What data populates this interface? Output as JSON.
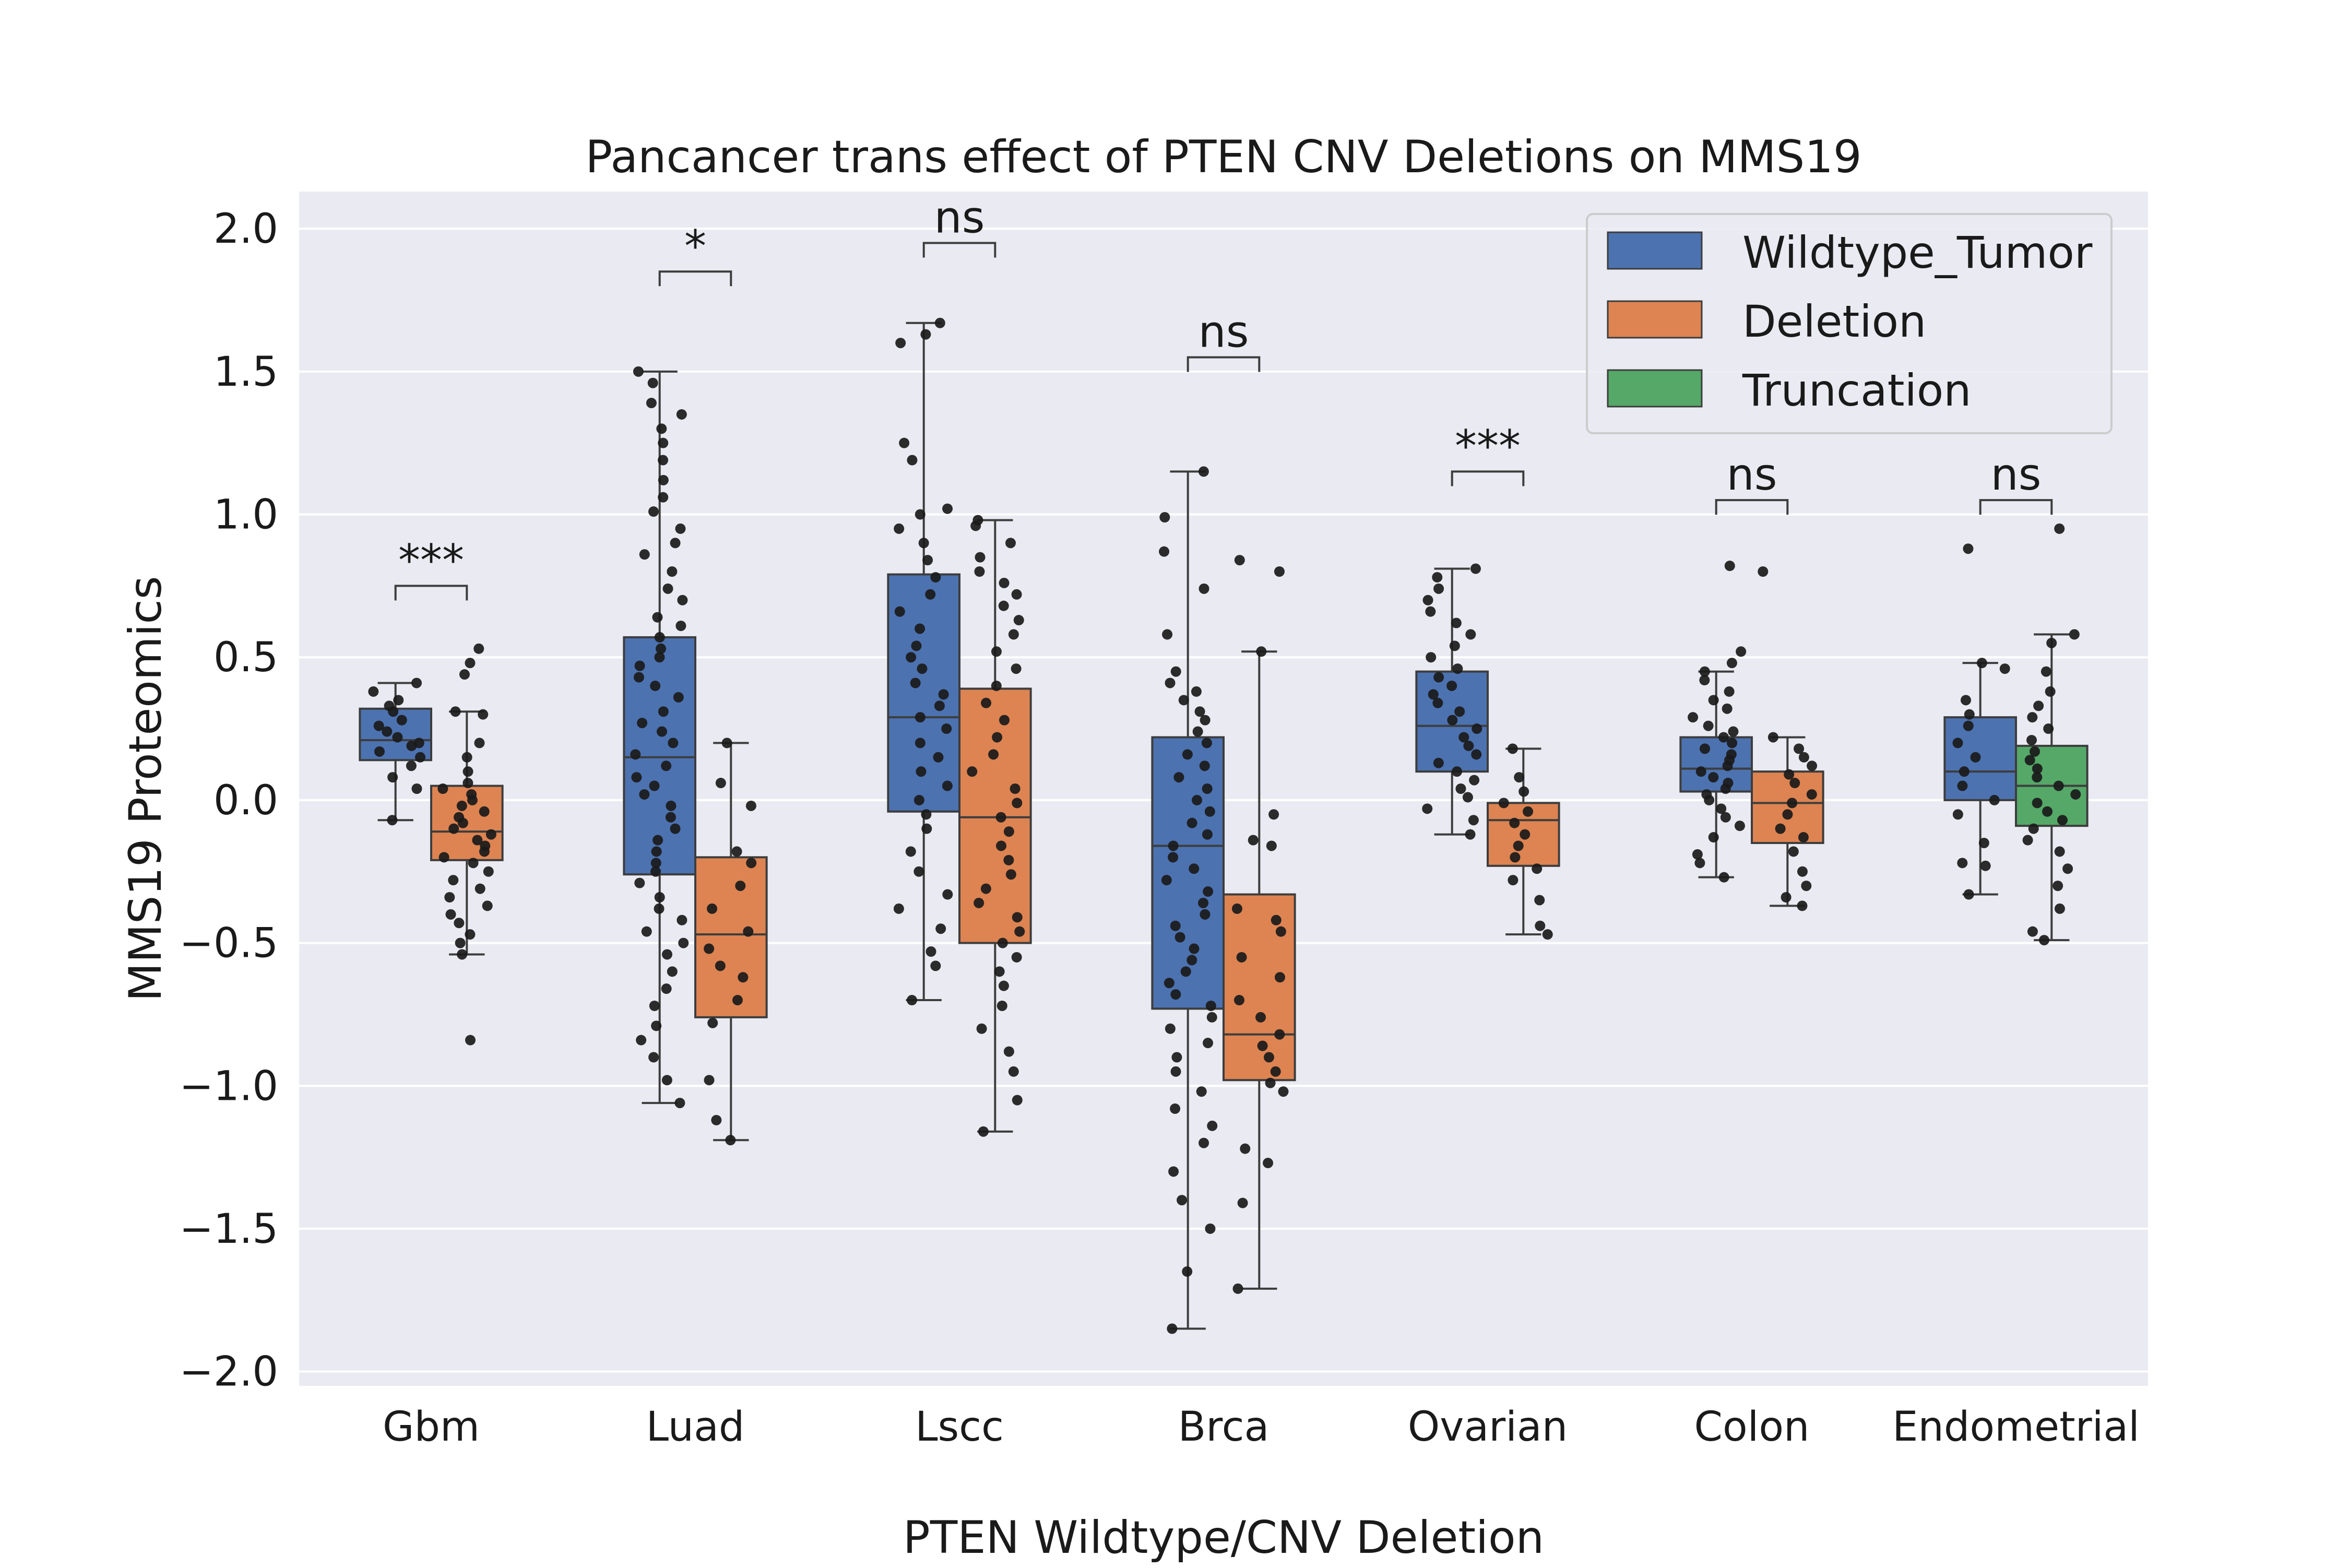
{
  "chart_data": {
    "type": "box",
    "title": "Pancancer trans effect of PTEN CNV Deletions on MMS19",
    "xlabel": "PTEN Wildtype/CNV Deletion",
    "ylabel": "MMS19 Proteomics",
    "ylim": [
      -2.05,
      2.13
    ],
    "yticks": [
      2.0,
      1.5,
      1.0,
      0.5,
      0.0,
      -0.5,
      -1.0,
      -1.5,
      -2.0
    ],
    "ytick_labels": [
      "2.0",
      "1.5",
      "1.0",
      "0.5",
      "0.0",
      "−0.5",
      "−1.0",
      "−1.5",
      "−2.0"
    ],
    "grid": true,
    "background": "#eaeaf2",
    "legend_position": "top-right",
    "categories": [
      "Gbm",
      "Luad",
      "Lscc",
      "Brca",
      "Ovarian",
      "Colon",
      "Endometrial"
    ],
    "legend": [
      {
        "label": "Wildtype_Tumor",
        "color": "#4c72b0"
      },
      {
        "label": "Deletion",
        "color": "#dd8452"
      },
      {
        "label": "Truncation",
        "color": "#55a868"
      }
    ],
    "boxes": [
      {
        "category": "Gbm",
        "group": "Wildtype_Tumor",
        "color": "#4c72b0",
        "whisker_low": -0.07,
        "q1": 0.14,
        "median": 0.21,
        "q3": 0.32,
        "whisker_high": 0.41,
        "points": [
          0.41,
          0.38,
          0.35,
          0.33,
          0.31,
          0.28,
          0.26,
          0.24,
          0.22,
          0.2,
          0.19,
          0.17,
          0.15,
          0.12,
          0.08,
          0.04,
          -0.07
        ]
      },
      {
        "category": "Gbm",
        "group": "Deletion",
        "color": "#dd8452",
        "whisker_low": -0.54,
        "q1": -0.21,
        "median": -0.11,
        "q3": 0.05,
        "whisker_high": 0.31,
        "points": [
          0.53,
          0.48,
          0.44,
          0.31,
          0.3,
          0.2,
          0.15,
          0.1,
          0.06,
          0.04,
          0.02,
          0.0,
          -0.02,
          -0.04,
          -0.06,
          -0.08,
          -0.1,
          -0.12,
          -0.14,
          -0.16,
          -0.18,
          -0.2,
          -0.22,
          -0.25,
          -0.28,
          -0.31,
          -0.34,
          -0.37,
          -0.4,
          -0.43,
          -0.47,
          -0.5,
          -0.54,
          -0.84
        ]
      },
      {
        "category": "Luad",
        "group": "Wildtype_Tumor",
        "color": "#4c72b0",
        "whisker_low": -1.06,
        "q1": -0.26,
        "median": 0.15,
        "q3": 0.57,
        "whisker_high": 1.5,
        "points": [
          1.5,
          1.46,
          1.39,
          1.35,
          1.3,
          1.25,
          1.19,
          1.12,
          1.06,
          1.01,
          0.95,
          0.9,
          0.86,
          0.8,
          0.74,
          0.7,
          0.64,
          0.61,
          0.57,
          0.53,
          0.5,
          0.47,
          0.43,
          0.4,
          0.36,
          0.31,
          0.27,
          0.24,
          0.2,
          0.16,
          0.12,
          0.08,
          0.05,
          0.02,
          -0.02,
          -0.06,
          -0.1,
          -0.14,
          -0.18,
          -0.22,
          -0.25,
          -0.29,
          -0.34,
          -0.38,
          -0.42,
          -0.46,
          -0.5,
          -0.54,
          -0.6,
          -0.66,
          -0.72,
          -0.79,
          -0.84,
          -0.9,
          -0.98,
          -1.06
        ]
      },
      {
        "category": "Luad",
        "group": "Deletion",
        "color": "#dd8452",
        "whisker_low": -1.19,
        "q1": -0.76,
        "median": -0.47,
        "q3": -0.2,
        "whisker_high": 0.2,
        "points": [
          0.2,
          0.06,
          -0.02,
          -0.18,
          -0.22,
          -0.3,
          -0.38,
          -0.46,
          -0.52,
          -0.58,
          -0.62,
          -0.7,
          -0.78,
          -0.98,
          -1.12,
          -1.19
        ]
      },
      {
        "category": "Lscc",
        "group": "Wildtype_Tumor",
        "color": "#4c72b0",
        "whisker_low": -0.7,
        "q1": -0.04,
        "median": 0.29,
        "q3": 0.79,
        "whisker_high": 1.67,
        "points": [
          1.67,
          1.63,
          1.6,
          1.25,
          1.19,
          1.02,
          1.0,
          0.95,
          0.9,
          0.84,
          0.78,
          0.72,
          0.66,
          0.6,
          0.54,
          0.5,
          0.46,
          0.41,
          0.37,
          0.33,
          0.29,
          0.25,
          0.2,
          0.15,
          0.1,
          0.05,
          0.0,
          -0.05,
          -0.1,
          -0.18,
          -0.25,
          -0.33,
          -0.38,
          -0.45,
          -0.53,
          -0.58,
          -0.7
        ]
      },
      {
        "category": "Lscc",
        "group": "Deletion",
        "color": "#dd8452",
        "whisker_low": -1.16,
        "q1": -0.5,
        "median": -0.06,
        "q3": 0.39,
        "whisker_high": 0.98,
        "points": [
          0.98,
          0.96,
          0.9,
          0.85,
          0.8,
          0.76,
          0.72,
          0.68,
          0.63,
          0.58,
          0.52,
          0.46,
          0.4,
          0.34,
          0.28,
          0.22,
          0.16,
          0.1,
          0.04,
          -0.01,
          -0.06,
          -0.11,
          -0.16,
          -0.21,
          -0.26,
          -0.31,
          -0.36,
          -0.41,
          -0.46,
          -0.5,
          -0.55,
          -0.6,
          -0.65,
          -0.72,
          -0.8,
          -0.88,
          -0.95,
          -1.05,
          -1.16
        ]
      },
      {
        "category": "Brca",
        "group": "Wildtype_Tumor",
        "color": "#4c72b0",
        "whisker_low": -1.85,
        "q1": -0.73,
        "median": -0.16,
        "q3": 0.22,
        "whisker_high": 1.15,
        "points": [
          1.15,
          0.99,
          0.87,
          0.74,
          0.58,
          0.45,
          0.41,
          0.38,
          0.35,
          0.31,
          0.28,
          0.24,
          0.2,
          0.16,
          0.12,
          0.08,
          0.04,
          0.0,
          -0.04,
          -0.08,
          -0.12,
          -0.16,
          -0.2,
          -0.24,
          -0.28,
          -0.32,
          -0.36,
          -0.4,
          -0.44,
          -0.48,
          -0.52,
          -0.56,
          -0.6,
          -0.64,
          -0.68,
          -0.72,
          -0.76,
          -0.8,
          -0.85,
          -0.9,
          -0.95,
          -1.02,
          -1.08,
          -1.14,
          -1.2,
          -1.3,
          -1.4,
          -1.5,
          -1.65,
          -1.85
        ]
      },
      {
        "category": "Brca",
        "group": "Deletion",
        "color": "#dd8452",
        "whisker_low": -1.71,
        "q1": -0.98,
        "median": -0.82,
        "q3": -0.33,
        "whisker_high": 0.52,
        "points": [
          0.84,
          0.8,
          0.52,
          -0.05,
          -0.14,
          -0.16,
          -0.38,
          -0.42,
          -0.46,
          -0.55,
          -0.62,
          -0.7,
          -0.76,
          -0.82,
          -0.86,
          -0.9,
          -0.95,
          -0.99,
          -1.02,
          -1.22,
          -1.27,
          -1.41,
          -1.71
        ]
      },
      {
        "category": "Ovarian",
        "group": "Wildtype_Tumor",
        "color": "#4c72b0",
        "whisker_low": -0.12,
        "q1": 0.1,
        "median": 0.26,
        "q3": 0.45,
        "whisker_high": 0.81,
        "points": [
          0.81,
          0.78,
          0.74,
          0.7,
          0.66,
          0.62,
          0.58,
          0.54,
          0.5,
          0.46,
          0.43,
          0.4,
          0.37,
          0.34,
          0.31,
          0.28,
          0.25,
          0.22,
          0.19,
          0.16,
          0.13,
          0.1,
          0.07,
          0.04,
          0.01,
          -0.03,
          -0.07,
          -0.12
        ]
      },
      {
        "category": "Ovarian",
        "group": "Deletion",
        "color": "#dd8452",
        "whisker_low": -0.47,
        "q1": -0.23,
        "median": -0.07,
        "q3": -0.01,
        "whisker_high": 0.18,
        "points": [
          0.18,
          0.08,
          0.03,
          -0.01,
          -0.04,
          -0.08,
          -0.12,
          -0.16,
          -0.2,
          -0.24,
          -0.28,
          -0.35,
          -0.44,
          -0.47
        ]
      },
      {
        "category": "Colon",
        "group": "Wildtype_Tumor",
        "color": "#4c72b0",
        "whisker_low": -0.27,
        "q1": 0.03,
        "median": 0.11,
        "q3": 0.22,
        "whisker_high": 0.45,
        "points": [
          0.82,
          0.52,
          0.48,
          0.45,
          0.42,
          0.38,
          0.35,
          0.32,
          0.29,
          0.26,
          0.24,
          0.22,
          0.2,
          0.18,
          0.16,
          0.14,
          0.12,
          0.1,
          0.08,
          0.06,
          0.04,
          0.02,
          0.0,
          -0.03,
          -0.06,
          -0.09,
          -0.13,
          -0.19,
          -0.22,
          -0.27
        ]
      },
      {
        "category": "Colon",
        "group": "Deletion",
        "color": "#dd8452",
        "whisker_low": -0.37,
        "q1": -0.15,
        "median": -0.01,
        "q3": 0.1,
        "whisker_high": 0.22,
        "points": [
          0.8,
          0.22,
          0.18,
          0.15,
          0.12,
          0.09,
          0.06,
          0.02,
          -0.01,
          -0.05,
          -0.1,
          -0.13,
          -0.18,
          -0.25,
          -0.3,
          -0.34,
          -0.37
        ]
      },
      {
        "category": "Endometrial",
        "group": "Wildtype_Tumor",
        "color": "#4c72b0",
        "whisker_low": -0.33,
        "q1": 0.0,
        "median": 0.1,
        "q3": 0.29,
        "whisker_high": 0.48,
        "points": [
          0.88,
          0.48,
          0.46,
          0.35,
          0.3,
          0.26,
          0.2,
          0.15,
          0.1,
          0.05,
          0.0,
          -0.05,
          -0.15,
          -0.22,
          -0.23,
          -0.33
        ]
      },
      {
        "category": "Endometrial",
        "group": "Truncation",
        "color": "#55a868",
        "whisker_low": -0.49,
        "q1": -0.09,
        "median": 0.05,
        "q3": 0.19,
        "whisker_high": 0.58,
        "points": [
          0.95,
          0.58,
          0.55,
          0.45,
          0.38,
          0.33,
          0.29,
          0.25,
          0.21,
          0.17,
          0.14,
          0.11,
          0.08,
          0.05,
          0.02,
          -0.01,
          -0.04,
          -0.07,
          -0.1,
          -0.14,
          -0.18,
          -0.24,
          -0.3,
          -0.38,
          -0.46,
          -0.49
        ]
      }
    ],
    "annotations": [
      {
        "category": "Gbm",
        "label": "***",
        "y": 0.75
      },
      {
        "category": "Luad",
        "label": "*",
        "y": 1.85
      },
      {
        "category": "Lscc",
        "label": "ns",
        "y": 1.95
      },
      {
        "category": "Brca",
        "label": "ns",
        "y": 1.55
      },
      {
        "category": "Ovarian",
        "label": "***",
        "y": 1.15
      },
      {
        "category": "Colon",
        "label": "ns",
        "y": 1.05
      },
      {
        "category": "Endometrial",
        "label": "ns",
        "y": 1.05
      }
    ]
  }
}
